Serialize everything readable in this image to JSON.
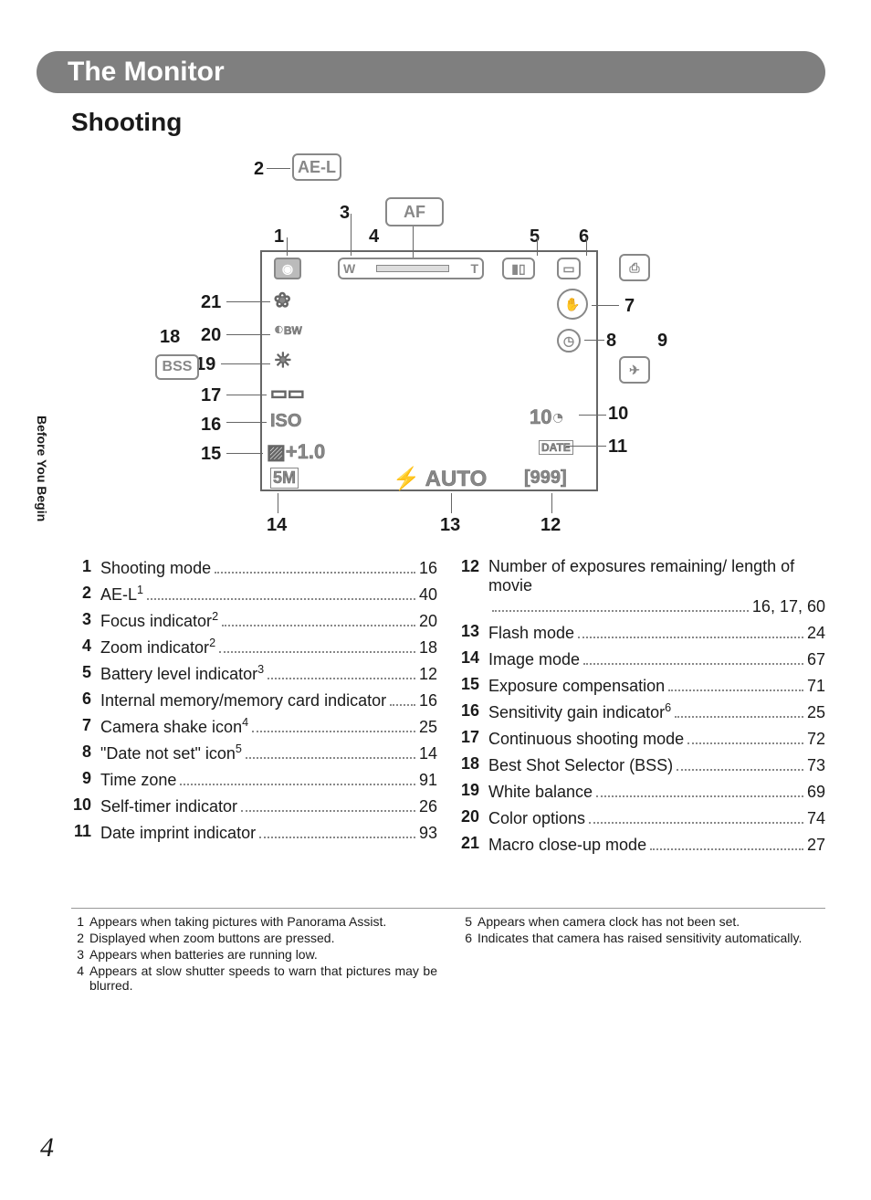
{
  "header": {
    "title": "The Monitor"
  },
  "subtitle": "Shooting",
  "side_tab": "Before You Begin",
  "page_number": "4",
  "diagram": {
    "callouts": [
      "1",
      "2",
      "3",
      "4",
      "5",
      "6",
      "7",
      "8",
      "9",
      "10",
      "11",
      "12",
      "13",
      "14",
      "15",
      "16",
      "17",
      "18",
      "19",
      "20",
      "21"
    ],
    "icons": {
      "ael": "AE-L",
      "af": "AF",
      "bss": "BSS",
      "iso": "ISO",
      "ev": "+1.0",
      "im": "5M",
      "auto": "AUTO",
      "remaining": "999",
      "date": "DATE",
      "timer": "10",
      "w": "W",
      "t": "T",
      "bw": "BW"
    }
  },
  "left_items": [
    {
      "n": "1",
      "label": "Shooting mode",
      "sup": "",
      "page": "16"
    },
    {
      "n": "2",
      "label": "AE-L",
      "sup": "1",
      "page": "40"
    },
    {
      "n": "3",
      "label": "Focus indicator",
      "sup": "2",
      "page": "20"
    },
    {
      "n": "4",
      "label": "Zoom indicator",
      "sup": "2",
      "page": "18"
    },
    {
      "n": "5",
      "label": "Battery level indicator",
      "sup": "3",
      "page": "12"
    },
    {
      "n": "6",
      "label": "Internal memory/memory card indicator",
      "sup": "",
      "page": "16"
    },
    {
      "n": "7",
      "label": "Camera shake icon",
      "sup": "4",
      "page": "25"
    },
    {
      "n": "8",
      "label": "\"Date not set\" icon",
      "sup": "5",
      "page": "14"
    },
    {
      "n": "9",
      "label": "Time zone",
      "sup": "",
      "page": "91"
    },
    {
      "n": "10",
      "label": "Self-timer indicator",
      "sup": "",
      "page": "26"
    },
    {
      "n": "11",
      "label": "Date imprint indicator",
      "sup": "",
      "page": "93"
    }
  ],
  "right_items": [
    {
      "n": "12",
      "label": "Number of exposures remaining/ length of movie",
      "sup": "",
      "page": "16, 17, 60"
    },
    {
      "n": "13",
      "label": "Flash mode",
      "sup": "",
      "page": "24"
    },
    {
      "n": "14",
      "label": "Image mode",
      "sup": "",
      "page": "67"
    },
    {
      "n": "15",
      "label": "Exposure compensation",
      "sup": "",
      "page": "71"
    },
    {
      "n": "16",
      "label": "Sensitivity gain indicator",
      "sup": "6",
      "page": "25"
    },
    {
      "n": "17",
      "label": "Continuous shooting mode",
      "sup": "",
      "page": "72"
    },
    {
      "n": "18",
      "label": "Best Shot Selector (BSS)",
      "sup": "",
      "page": "73"
    },
    {
      "n": "19",
      "label": "White balance",
      "sup": "",
      "page": "69"
    },
    {
      "n": "20",
      "label": "Color options",
      "sup": "",
      "page": "74"
    },
    {
      "n": "21",
      "label": "Macro close-up mode",
      "sup": "",
      "page": "27"
    }
  ],
  "footnotes_left": [
    {
      "n": "1",
      "text": "Appears when taking pictures with Panorama Assist."
    },
    {
      "n": "2",
      "text": "Displayed when zoom buttons are pressed."
    },
    {
      "n": "3",
      "text": "Appears when batteries are running low."
    },
    {
      "n": "4",
      "text": "Appears at slow shutter speeds to warn that pictures may be blurred."
    }
  ],
  "footnotes_right": [
    {
      "n": "5",
      "text": "Appears when camera clock has not been set."
    },
    {
      "n": "6",
      "text": "Indicates that camera has raised sensitivity automatically."
    }
  ]
}
